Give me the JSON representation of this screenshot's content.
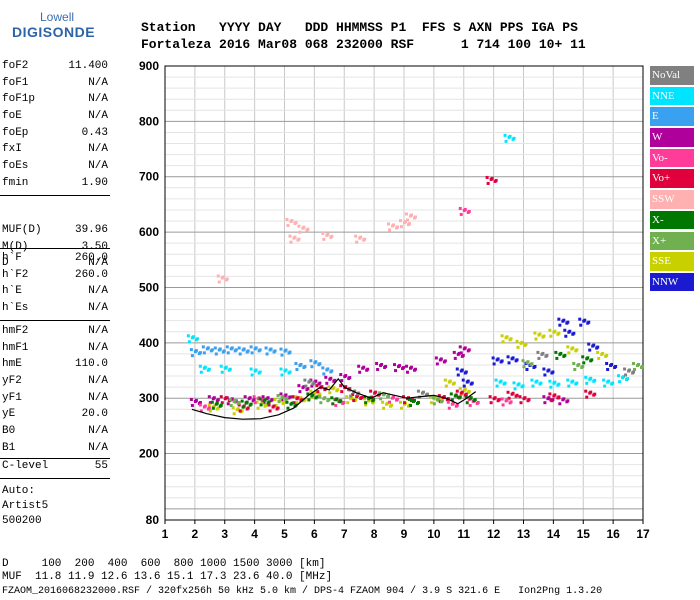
{
  "logo": {
    "line1": "Lowell",
    "line2": "DIGISONDE"
  },
  "header": {
    "line1": "Station   YYYY DAY   DDD HHMMSS P1  FFS S AXN PPS IGA PS",
    "line2": "Fortaleza 2016 Mar08 068 232000 RSF      1 714 100 10+ 11"
  },
  "params_a": [
    {
      "name": "foF2",
      "value": "11.400"
    },
    {
      "name": "foF1",
      "value": "N/A"
    },
    {
      "name": "foF1p",
      "value": "N/A"
    },
    {
      "name": "foE",
      "value": "N/A"
    },
    {
      "name": "foEp",
      "value": "0.43"
    },
    {
      "name": "fxI",
      "value": "N/A"
    },
    {
      "name": "foEs",
      "value": "N/A"
    },
    {
      "name": "fmin",
      "value": "1.90"
    }
  ],
  "params_b": [
    {
      "name": "MUF(D)",
      "value": "39.96"
    },
    {
      "name": "M(D)",
      "value": "3.50"
    },
    {
      "name": "D",
      "value": "N/A"
    }
  ],
  "params_c": [
    {
      "name": "h`F",
      "value": "260.0"
    },
    {
      "name": "h`F2",
      "value": "260.0"
    },
    {
      "name": "h`E",
      "value": "N/A"
    },
    {
      "name": "h`Es",
      "value": "N/A"
    }
  ],
  "params_d": [
    {
      "name": "hmF2",
      "value": "N/A"
    },
    {
      "name": "hmF1",
      "value": "N/A"
    },
    {
      "name": "hmE",
      "value": "110.0"
    },
    {
      "name": "yF2",
      "value": "N/A"
    },
    {
      "name": "yF1",
      "value": "N/A"
    },
    {
      "name": "yE",
      "value": "20.0"
    },
    {
      "name": "B0",
      "value": "N/A"
    },
    {
      "name": "B1",
      "value": "N/A"
    }
  ],
  "params_e": [
    {
      "name": "C-level",
      "value": "55"
    }
  ],
  "auto": {
    "line1": "Auto:",
    "line2": "Artist5",
    "line3": "500200"
  },
  "legend": [
    {
      "label": "NoVal",
      "color": "#808080"
    },
    {
      "label": "NNE",
      "color": "#00e5ff"
    },
    {
      "label": "E",
      "color": "#3aa0f0"
    },
    {
      "label": "W",
      "color": "#b0009c"
    },
    {
      "label": "Vo-",
      "color": "#ff3c9a"
    },
    {
      "label": "Vo+",
      "color": "#e0003c"
    },
    {
      "label": "SSW",
      "color": "#ffb0b0"
    },
    {
      "label": "X-",
      "color": "#007800"
    },
    {
      "label": "X+",
      "color": "#70b050"
    },
    {
      "label": "SSE",
      "color": "#c8d000"
    },
    {
      "label": "NNW",
      "color": "#1a1ad0"
    }
  ],
  "footer": {
    "line1": "D     100  200  400  600  800 1000 1500 3000 [km]",
    "line2": "MUF  11.8 11.9 12.6 13.6 15.1 17.3 23.6 40.0 [MHz]",
    "line3": "FZAOM_2016068232000.RSF / 320fx256h 50 kHz 5.0 km / DPS-4 FZAOM 904 / 3.9 S 321.6 E   Ion2Png 1.3.20"
  },
  "chart_data": {
    "type": "scatter",
    "title": "",
    "xlabel": "",
    "ylabel": "",
    "xlim": [
      1,
      17
    ],
    "ylim": [
      80,
      900
    ],
    "x_ticks": [
      "1",
      "2",
      "3",
      "4",
      "5",
      "6",
      "7",
      "8",
      "9",
      "10",
      "11",
      "12",
      "13",
      "14",
      "15",
      "16",
      "17"
    ],
    "y_ticks": [
      "80",
      "200",
      "300",
      "400",
      "500",
      "600",
      "700",
      "800",
      "900"
    ],
    "grid": true,
    "series": [
      {
        "name": "W",
        "color": "#b0009c",
        "points": [
          [
            2.0,
            295
          ],
          [
            2.6,
            300
          ],
          [
            3.2,
            298
          ],
          [
            3.8,
            300
          ],
          [
            4.4,
            300
          ],
          [
            5.0,
            305
          ],
          [
            5.6,
            320
          ],
          [
            6.0,
            330
          ],
          [
            6.5,
            335
          ],
          [
            7.0,
            340
          ],
          [
            7.6,
            355
          ],
          [
            8.2,
            360
          ],
          [
            8.8,
            358
          ],
          [
            9.2,
            355
          ],
          [
            10.2,
            370
          ],
          [
            10.8,
            380
          ],
          [
            11.0,
            390
          ],
          [
            13.8,
            300
          ],
          [
            14.3,
            298
          ]
        ]
      },
      {
        "name": "E",
        "color": "#3aa0f0",
        "points": [
          [
            2.0,
            385
          ],
          [
            2.4,
            390
          ],
          [
            2.8,
            388
          ],
          [
            3.2,
            390
          ],
          [
            3.6,
            388
          ],
          [
            4.0,
            390
          ],
          [
            4.5,
            388
          ],
          [
            5.0,
            386
          ],
          [
            5.5,
            360
          ],
          [
            6.0,
            365
          ],
          [
            6.4,
            352
          ]
        ]
      },
      {
        "name": "NNE",
        "color": "#00e5ff",
        "points": [
          [
            1.9,
            410
          ],
          [
            2.3,
            355
          ],
          [
            3.0,
            355
          ],
          [
            4.0,
            350
          ],
          [
            5.0,
            350
          ],
          [
            12.2,
            330
          ],
          [
            12.8,
            325
          ],
          [
            13.4,
            330
          ],
          [
            14.0,
            328
          ],
          [
            14.6,
            330
          ],
          [
            15.2,
            335
          ],
          [
            15.8,
            330
          ],
          [
            16.3,
            338
          ],
          [
            12.5,
            772
          ]
        ]
      },
      {
        "name": "SSE",
        "color": "#c8d000",
        "points": [
          [
            2.6,
            285
          ],
          [
            3.4,
            280
          ],
          [
            4.2,
            290
          ],
          [
            4.8,
            295
          ],
          [
            5.5,
            300
          ],
          [
            6.0,
            310
          ],
          [
            6.6,
            318
          ],
          [
            7.2,
            300
          ],
          [
            7.8,
            296
          ],
          [
            8.4,
            290
          ],
          [
            9.0,
            290
          ],
          [
            10.0,
            300
          ],
          [
            10.5,
            330
          ],
          [
            11.0,
            315
          ],
          [
            12.4,
            410
          ],
          [
            12.9,
            400
          ],
          [
            13.5,
            415
          ],
          [
            14.0,
            420
          ],
          [
            14.6,
            390
          ],
          [
            15.6,
            380
          ]
        ]
      },
      {
        "name": "NNW",
        "color": "#1a1ad0",
        "points": [
          [
            12.1,
            370
          ],
          [
            12.6,
            372
          ],
          [
            13.2,
            360
          ],
          [
            13.8,
            350
          ],
          [
            14.3,
            440
          ],
          [
            14.5,
            420
          ],
          [
            15.0,
            440
          ],
          [
            15.3,
            395
          ],
          [
            15.9,
            360
          ],
          [
            10.9,
            350
          ],
          [
            11.1,
            330
          ]
        ]
      },
      {
        "name": "Vo+",
        "color": "#e0003c",
        "points": [
          [
            3.0,
            300
          ],
          [
            3.6,
            285
          ],
          [
            4.6,
            285
          ],
          [
            5.4,
            300
          ],
          [
            6.2,
            320
          ],
          [
            7.0,
            320
          ],
          [
            7.4,
            304
          ],
          [
            8.0,
            310
          ],
          [
            9.1,
            300
          ],
          [
            10.3,
            302
          ],
          [
            10.9,
            310
          ],
          [
            12.0,
            300
          ],
          [
            12.6,
            308
          ],
          [
            13.0,
            300
          ],
          [
            14.0,
            305
          ],
          [
            15.2,
            310
          ],
          [
            11.9,
            696
          ]
        ]
      },
      {
        "name": "Vo-",
        "color": "#ff3c9a",
        "points": [
          [
            2.3,
            285
          ],
          [
            4.1,
            300
          ],
          [
            6.8,
            295
          ],
          [
            8.6,
            301
          ],
          [
            10.6,
            290
          ],
          [
            11.3,
            295
          ],
          [
            12.4,
            296
          ],
          [
            11.0,
            640
          ]
        ]
      },
      {
        "name": "SSW",
        "color": "#ffb0b0",
        "points": [
          [
            5.2,
            620
          ],
          [
            5.6,
            608
          ],
          [
            6.4,
            595
          ],
          [
            8.6,
            612
          ],
          [
            9.0,
            618
          ],
          [
            9.2,
            630
          ],
          [
            7.5,
            590
          ],
          [
            2.9,
            518
          ],
          [
            5.3,
            590
          ]
        ]
      },
      {
        "name": "X-",
        "color": "#007800",
        "points": [
          [
            2.7,
            290
          ],
          [
            3.7,
            292
          ],
          [
            4.3,
            296
          ],
          [
            5.2,
            290
          ],
          [
            5.9,
            305
          ],
          [
            6.7,
            298
          ],
          [
            7.8,
            300
          ],
          [
            9.3,
            295
          ],
          [
            10.7,
            305
          ],
          [
            11.2,
            300
          ],
          [
            14.2,
            380
          ],
          [
            15.1,
            372
          ]
        ]
      },
      {
        "name": "X+",
        "color": "#70b050",
        "points": [
          [
            3.3,
            295
          ],
          [
            4.9,
            302
          ],
          [
            6.3,
            300
          ],
          [
            8.3,
            307
          ],
          [
            10.1,
            298
          ],
          [
            13.1,
            365
          ],
          [
            14.8,
            360
          ],
          [
            16.8,
            360
          ]
        ]
      },
      {
        "name": "NoVal",
        "color": "#808080",
        "points": [
          [
            5.8,
            330
          ],
          [
            7.3,
            312
          ],
          [
            9.6,
            310
          ],
          [
            13.6,
            380
          ],
          [
            16.5,
            350
          ]
        ]
      }
    ],
    "trace": [
      [
        1.9,
        280
      ],
      [
        2.4,
        272
      ],
      [
        3.0,
        265
      ],
      [
        3.6,
        262
      ],
      [
        4.2,
        263
      ],
      [
        4.8,
        270
      ],
      [
        5.3,
        282
      ],
      [
        5.8,
        305
      ],
      [
        6.2,
        320
      ],
      [
        6.5,
        315
      ],
      [
        6.8,
        335
      ],
      [
        7.0,
        320
      ],
      [
        7.4,
        310
      ],
      [
        7.9,
        300
      ],
      [
        8.3,
        310
      ],
      [
        8.7,
        305
      ],
      [
        9.1,
        300
      ],
      [
        9.6,
        303
      ],
      [
        10.0,
        305
      ],
      [
        10.4,
        300
      ],
      [
        10.8,
        290
      ],
      [
        11.1,
        300
      ],
      [
        11.4,
        312
      ]
    ]
  }
}
